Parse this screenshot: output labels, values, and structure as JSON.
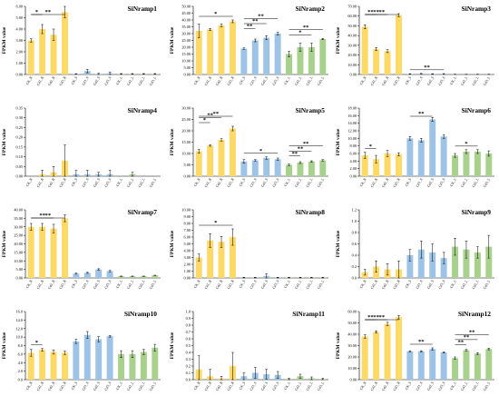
{
  "figure": {
    "categories": [
      "CK_R",
      "Cd1_R",
      "Cd2_R",
      "Cd3_R",
      "CK_S",
      "Cd1_S",
      "Cd2_S",
      "Cd3_S",
      "CK_L",
      "Cd1_L",
      "Cd2_L",
      "Cd3_L"
    ],
    "ylabel": "FPKM value",
    "group_colors": {
      "R": "#FFD966",
      "S": "#9DC3E6",
      "L": "#A9D18E"
    }
  },
  "chart_data": [
    {
      "type": "bar",
      "title": "SiNramp1",
      "ylim": [
        0,
        6
      ],
      "yticks": [
        0,
        1,
        2,
        3,
        4,
        5,
        6
      ],
      "values": [
        3.0,
        4.0,
        3.5,
        5.5,
        0.05,
        0.3,
        0.05,
        0.1,
        0.05,
        0.05,
        0.05,
        0.05
      ],
      "errors": [
        0.15,
        0.4,
        0.5,
        0.5,
        0.02,
        0.15,
        0.05,
        0.1,
        0.03,
        0.03,
        0.03,
        0.03
      ],
      "significance": [
        {
          "from": 0,
          "to": 3,
          "label": "**"
        },
        {
          "from": 0,
          "to": 1,
          "label": "*"
        }
      ]
    },
    {
      "type": "bar",
      "title": "SiNramp2",
      "ylim": [
        0,
        50
      ],
      "yticks": [
        0,
        5,
        10,
        15,
        20,
        25,
        30,
        35,
        40,
        45,
        50
      ],
      "values": [
        32,
        33,
        36,
        39,
        19,
        25,
        27,
        30,
        15,
        20,
        20,
        26
      ],
      "errors": [
        5,
        0.8,
        1,
        1,
        0.5,
        1,
        1.5,
        1,
        2,
        3,
        3,
        0.5
      ],
      "significance": [
        {
          "from": 0,
          "to": 3,
          "label": "*"
        },
        {
          "from": 4,
          "to": 7,
          "label": "**"
        },
        {
          "from": 4,
          "to": 6,
          "label": "**"
        },
        {
          "from": 4,
          "to": 5,
          "label": "**"
        },
        {
          "from": 8,
          "to": 11,
          "label": "**"
        },
        {
          "from": 8,
          "to": 10,
          "label": "*"
        }
      ]
    },
    {
      "type": "bar",
      "title": "SiNramp3",
      "ylim": [
        0,
        70
      ],
      "yticks": [
        0,
        10,
        20,
        30,
        40,
        50,
        60,
        70
      ],
      "values": [
        49,
        26,
        24,
        61,
        0.5,
        0.8,
        0.5,
        0.6,
        0.2,
        0.2,
        0.2,
        0.2
      ],
      "errors": [
        2,
        1.5,
        1.5,
        1.5,
        0.3,
        0.3,
        0.3,
        0.3,
        0.1,
        0.1,
        0.1,
        0.1
      ],
      "significance": [
        {
          "from": 0,
          "to": 3,
          "label": "**"
        },
        {
          "from": 0,
          "to": 2,
          "label": "**"
        },
        {
          "from": 0,
          "to": 1,
          "label": "**"
        },
        {
          "from": 4,
          "to": 7,
          "label": "**"
        }
      ]
    },
    {
      "type": "bar",
      "title": "SiNramp4",
      "ylim": [
        0,
        0.35
      ],
      "yticks": [
        0.0,
        0.05,
        0.1,
        0.15,
        0.2,
        0.25,
        0.3,
        0.35
      ],
      "values": [
        0.0,
        0.01,
        0.02,
        0.08,
        0.01,
        0.01,
        0.01,
        0.01,
        0.0,
        0.01,
        0.0,
        0.0
      ],
      "errors": [
        0.0,
        0.02,
        0.03,
        0.08,
        0.02,
        0.02,
        0.01,
        0.02,
        0.0,
        0.01,
        0.0,
        0.0
      ],
      "significance": []
    },
    {
      "type": "bar",
      "title": "SiNramp5",
      "ylim": [
        0,
        30
      ],
      "yticks": [
        0,
        5,
        10,
        15,
        20,
        25,
        30
      ],
      "values": [
        11,
        13.5,
        16,
        21,
        6.5,
        7,
        8,
        7.5,
        5,
        6,
        6.5,
        7
      ],
      "errors": [
        0.8,
        0.3,
        0.5,
        1,
        0.8,
        0.3,
        0.5,
        0.5,
        0.3,
        0.4,
        0.3,
        0.3
      ],
      "significance": [
        {
          "from": 0,
          "to": 3,
          "label": "**"
        },
        {
          "from": 0,
          "to": 2,
          "label": "**"
        },
        {
          "from": 0,
          "to": 1,
          "label": "*"
        },
        {
          "from": 4,
          "to": 7,
          "label": "*"
        },
        {
          "from": 8,
          "to": 11,
          "label": "**"
        },
        {
          "from": 8,
          "to": 10,
          "label": "**"
        },
        {
          "from": 8,
          "to": 9,
          "label": "**"
        }
      ]
    },
    {
      "type": "bar",
      "title": "SiNramp6",
      "ylim": [
        0,
        18
      ],
      "yticks": [
        0,
        2,
        4,
        6,
        8,
        10,
        12,
        14,
        16,
        18
      ],
      "values": [
        5.5,
        4.5,
        6,
        5.8,
        10,
        9.5,
        15,
        10.5,
        5.5,
        6.5,
        6.5,
        6
      ],
      "errors": [
        0.8,
        1,
        0.8,
        0.4,
        0.5,
        0.5,
        0.5,
        0.5,
        0.5,
        0.5,
        0.5,
        0.7
      ],
      "significance": [
        {
          "from": 0,
          "to": 1,
          "label": "*"
        },
        {
          "from": 4,
          "to": 6,
          "label": "**"
        },
        {
          "from": 8,
          "to": 10,
          "label": "*"
        }
      ]
    },
    {
      "type": "bar",
      "title": "SiNramp7",
      "ylim": [
        0,
        40
      ],
      "yticks": [
        0,
        5,
        10,
        15,
        20,
        25,
        30,
        35,
        40
      ],
      "values": [
        30,
        30,
        29,
        35,
        2.5,
        3,
        5,
        4,
        1,
        1,
        1,
        1.5
      ],
      "errors": [
        2,
        2,
        2.5,
        2,
        0.3,
        0.3,
        0.4,
        0.4,
        0.1,
        0.1,
        0.1,
        0.1
      ],
      "significance": [
        {
          "from": 0,
          "to": 3,
          "label": "**"
        },
        {
          "from": 0,
          "to": 2,
          "label": "**"
        }
      ]
    },
    {
      "type": "bar",
      "title": "SiNramp8",
      "ylim": [
        0,
        10
      ],
      "yticks": [
        0,
        1,
        2,
        3,
        4,
        5,
        6,
        7,
        8,
        9,
        10
      ],
      "values": [
        3,
        5.5,
        5.3,
        6,
        0.05,
        0.05,
        0.3,
        0.05,
        0.05,
        0.05,
        0.05,
        0.05
      ],
      "errors": [
        0.5,
        1,
        0.8,
        1.2,
        0.05,
        0.05,
        0.3,
        0.05,
        0.05,
        0.05,
        0.05,
        0.05
      ],
      "significance": [
        {
          "from": 0,
          "to": 3,
          "label": "*"
        }
      ]
    },
    {
      "type": "bar",
      "title": "SiNramp9",
      "ylim": [
        0,
        1.2
      ],
      "yticks": [
        0.0,
        0.2,
        0.4,
        0.6,
        0.8,
        1.0,
        1.2
      ],
      "values": [
        0.1,
        0.2,
        0.15,
        0.15,
        0.4,
        0.5,
        0.45,
        0.35,
        0.55,
        0.5,
        0.45,
        0.55
      ],
      "errors": [
        0.05,
        0.1,
        0.1,
        0.15,
        0.1,
        0.15,
        0.15,
        0.1,
        0.15,
        0.15,
        0.1,
        0.2
      ],
      "significance": []
    },
    {
      "type": "bar",
      "title": "SiNramp10",
      "ylim": [
        0,
        16
      ],
      "yticks": [
        0.0,
        2.0,
        4.0,
        6.0,
        8.0,
        10.0,
        12.0,
        14.0,
        16.0
      ],
      "values": [
        6.3,
        7,
        6.5,
        6.3,
        9,
        10.5,
        9.5,
        10.2,
        6,
        6,
        6.5,
        7.5
      ],
      "errors": [
        0.8,
        0.3,
        0.5,
        0.4,
        0.5,
        0.8,
        0.6,
        0.2,
        0.8,
        0.8,
        0.6,
        0.8
      ],
      "significance": [
        {
          "from": 0,
          "to": 1,
          "label": "*"
        }
      ]
    },
    {
      "type": "bar",
      "title": "SiNramp11",
      "ylim": [
        0,
        1.0
      ],
      "yticks": [
        0.0,
        0.1,
        0.2,
        0.3,
        0.4,
        0.5,
        0.6,
        0.7,
        0.8,
        0.9,
        1.0
      ],
      "values": [
        0.15,
        0.05,
        0.02,
        0.2,
        0.05,
        0.1,
        0.08,
        0.07,
        0.01,
        0.05,
        0.02,
        0.01
      ],
      "errors": [
        0.2,
        0.1,
        0.03,
        0.2,
        0.05,
        0.08,
        0.07,
        0.05,
        0.01,
        0.03,
        0.02,
        0.01
      ],
      "significance": []
    },
    {
      "type": "bar",
      "title": "SiNramp12",
      "ylim": [
        0,
        60
      ],
      "yticks": [
        0,
        10,
        20,
        30,
        40,
        50,
        60
      ],
      "values": [
        38,
        42,
        49,
        55,
        25,
        25,
        27,
        24,
        19,
        26,
        23,
        27
      ],
      "errors": [
        1.5,
        1,
        1.5,
        1.5,
        0.5,
        0.5,
        1,
        0.5,
        1,
        0.7,
        0.8,
        0.7
      ],
      "significance": [
        {
          "from": 0,
          "to": 3,
          "label": "**"
        },
        {
          "from": 0,
          "to": 2,
          "label": "**"
        },
        {
          "from": 0,
          "to": 1,
          "label": "**"
        },
        {
          "from": 4,
          "to": 6,
          "label": "**"
        },
        {
          "from": 8,
          "to": 11,
          "label": "**"
        },
        {
          "from": 8,
          "to": 10,
          "label": "**"
        },
        {
          "from": 8,
          "to": 9,
          "label": "**"
        }
      ]
    }
  ]
}
